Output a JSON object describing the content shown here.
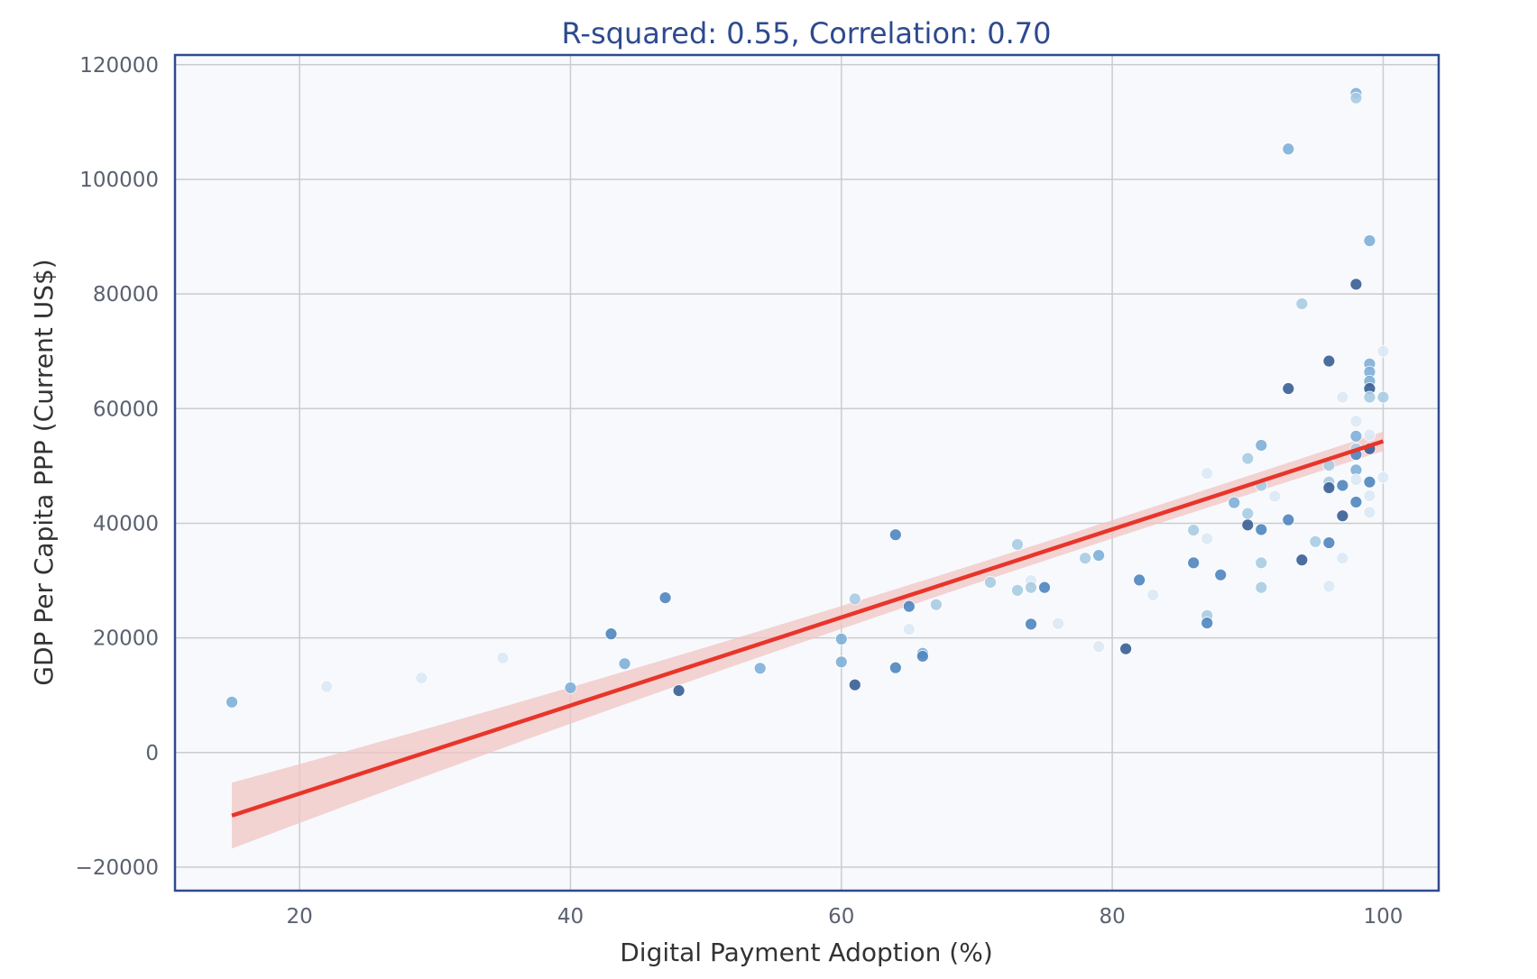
{
  "chart_data": {
    "type": "scatter",
    "title": "R-squared: 0.55, Correlation: 0.70",
    "xlabel": "Digital Payment Adoption (%)",
    "ylabel": "GDP Per Capita PPP (Current US$)",
    "xlim": [
      10.8,
      104.1
    ],
    "ylim": [
      -24100,
      121700
    ],
    "xticks": [
      20,
      40,
      60,
      80,
      100
    ],
    "yticks": [
      -20000,
      0,
      20000,
      40000,
      60000,
      80000,
      100000,
      120000
    ],
    "grid": true,
    "legend": "none",
    "colors": {
      "background": "#f7f9fc",
      "frame": "#2e4a8f",
      "grid": "#cccccc",
      "regression_line": "#e8352a",
      "confidence_band": "#f2c4c4",
      "point_shades": [
        "#dce9f5",
        "#a9cce3",
        "#7fb0d8",
        "#4f86c0",
        "#3a5f95"
      ]
    },
    "regression": {
      "x": [
        15,
        100
      ],
      "y": [
        -11000,
        54300
      ],
      "ci_lower": [
        -17500,
        52600
      ],
      "ci_upper": [
        -6000,
        56000
      ]
    },
    "points": [
      [
        15,
        8800,
        2
      ],
      [
        22,
        11500,
        0
      ],
      [
        29,
        13000,
        0
      ],
      [
        35,
        16500,
        0
      ],
      [
        40,
        11300,
        2
      ],
      [
        43,
        20700,
        3
      ],
      [
        44,
        15500,
        2
      ],
      [
        47,
        27000,
        3
      ],
      [
        48,
        10800,
        4
      ],
      [
        54,
        14700,
        2
      ],
      [
        60,
        19800,
        2
      ],
      [
        60,
        15800,
        2
      ],
      [
        61,
        26800,
        1
      ],
      [
        61,
        11800,
        4
      ],
      [
        64,
        38000,
        3
      ],
      [
        64,
        14800,
        3
      ],
      [
        65,
        25500,
        3
      ],
      [
        65,
        21500,
        0
      ],
      [
        66,
        17300,
        2
      ],
      [
        66,
        16800,
        3
      ],
      [
        67,
        25800,
        1
      ],
      [
        71,
        29700,
        1
      ],
      [
        73,
        36300,
        1
      ],
      [
        73,
        28300,
        1
      ],
      [
        74,
        30000,
        0
      ],
      [
        74,
        28800,
        1
      ],
      [
        74,
        22400,
        3
      ],
      [
        75,
        28800,
        3
      ],
      [
        76,
        22500,
        0
      ],
      [
        78,
        33900,
        1
      ],
      [
        79,
        34400,
        2
      ],
      [
        79,
        18500,
        0
      ],
      [
        81,
        18100,
        4
      ],
      [
        82,
        30100,
        3
      ],
      [
        83,
        27500,
        0
      ],
      [
        86,
        38800,
        1
      ],
      [
        86,
        33100,
        3
      ],
      [
        87,
        48700,
        0
      ],
      [
        87,
        37300,
        0
      ],
      [
        87,
        23900,
        1
      ],
      [
        87,
        22600,
        3
      ],
      [
        88,
        31000,
        3
      ],
      [
        89,
        43600,
        2
      ],
      [
        90,
        51300,
        1
      ],
      [
        90,
        41700,
        1
      ],
      [
        90,
        39700,
        4
      ],
      [
        91,
        53600,
        2
      ],
      [
        91,
        46600,
        1
      ],
      [
        91,
        38900,
        3
      ],
      [
        91,
        33100,
        1
      ],
      [
        91,
        28800,
        1
      ],
      [
        92,
        44700,
        0
      ],
      [
        93,
        105300,
        2
      ],
      [
        93,
        63500,
        4
      ],
      [
        93,
        40600,
        3
      ],
      [
        94,
        78300,
        1
      ],
      [
        94,
        33600,
        4
      ],
      [
        95,
        36800,
        1
      ],
      [
        96,
        68300,
        4
      ],
      [
        96,
        50100,
        1
      ],
      [
        96,
        47200,
        1
      ],
      [
        96,
        46200,
        4
      ],
      [
        96,
        36600,
        3
      ],
      [
        96,
        29000,
        0
      ],
      [
        97,
        62000,
        0
      ],
      [
        97,
        46600,
        3
      ],
      [
        97,
        41300,
        4
      ],
      [
        97,
        33900,
        0
      ],
      [
        98,
        115000,
        2
      ],
      [
        98,
        114200,
        1
      ],
      [
        98,
        81700,
        4
      ],
      [
        98,
        57800,
        0
      ],
      [
        98,
        55200,
        2
      ],
      [
        98,
        53000,
        1
      ],
      [
        98,
        52000,
        3
      ],
      [
        98,
        49300,
        2
      ],
      [
        98,
        47600,
        0
      ],
      [
        98,
        43700,
        3
      ],
      [
        99,
        89300,
        2
      ],
      [
        99,
        67800,
        2
      ],
      [
        99,
        66400,
        2
      ],
      [
        99,
        64800,
        2
      ],
      [
        99,
        63500,
        4
      ],
      [
        99,
        62000,
        1
      ],
      [
        99,
        55400,
        0
      ],
      [
        99,
        53000,
        4
      ],
      [
        99,
        47200,
        3
      ],
      [
        99,
        44800,
        0
      ],
      [
        99,
        41900,
        0
      ],
      [
        100,
        70000,
        0
      ],
      [
        100,
        62000,
        1
      ],
      [
        100,
        48000,
        0
      ]
    ]
  }
}
